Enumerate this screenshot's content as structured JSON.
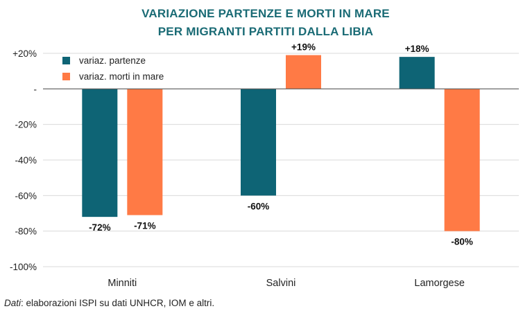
{
  "chart_data": {
    "type": "bar",
    "title_lines": [
      "VARIAZIONE PARTENZE E MORTI IN MARE",
      "PER MIGRANTI PARTITI DALLA LIBIA"
    ],
    "categories": [
      "Minniti",
      "Salvini",
      "Lamorgese"
    ],
    "series": [
      {
        "name": "variaz. partenze",
        "color": "#0e6475",
        "values": [
          -72,
          -60,
          18
        ],
        "labels": [
          "-72%",
          "-60%",
          "+18%"
        ]
      },
      {
        "name": "variaz. morti in mare",
        "color": "#ff7a45",
        "values": [
          -71,
          19,
          -80
        ],
        "labels": [
          "-71%",
          "+19%",
          "-80%"
        ]
      }
    ],
    "ylim": [
      -100,
      20
    ],
    "yticks": [
      20,
      0,
      -20,
      -40,
      -60,
      -80,
      -100
    ],
    "ytick_labels": [
      "+20%",
      "-",
      "-20%",
      "-40%",
      "-60%",
      "-80%",
      "-100%"
    ],
    "grid": true,
    "legend_position": "top-left",
    "xlabel": "",
    "ylabel": ""
  },
  "source": {
    "prefix": "Dati",
    "text": ": elaborazioni ISPI su dati UNHCR, IOM e altri."
  }
}
